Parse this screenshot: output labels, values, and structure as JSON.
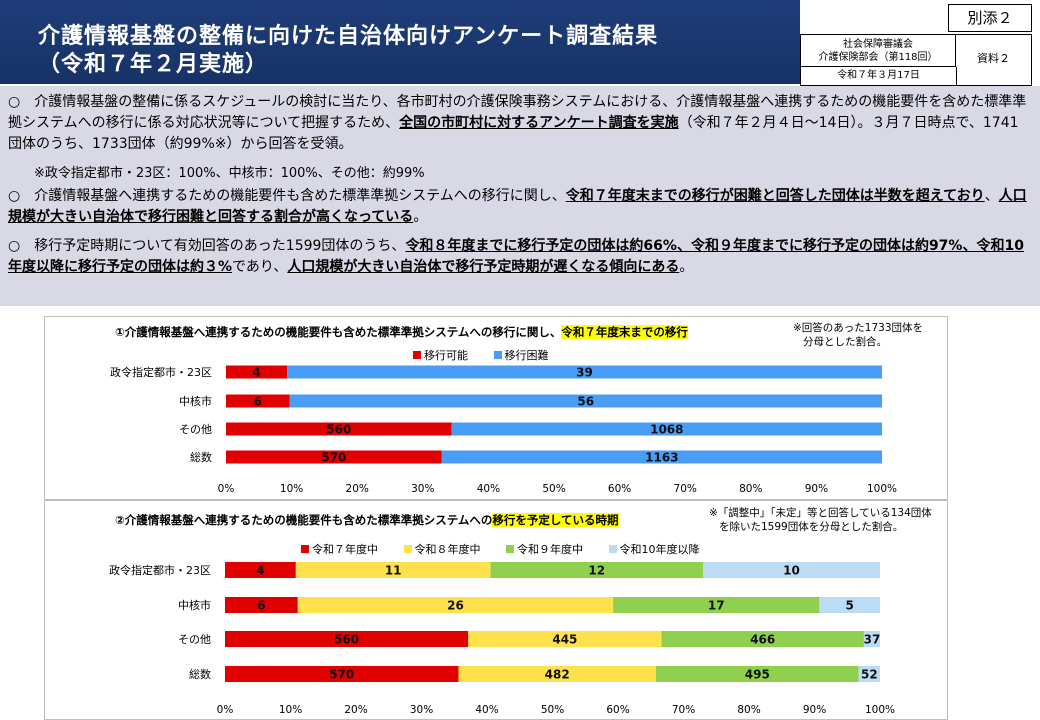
{
  "header": {
    "title_line1": "介護情報基盤の整備に向けた自治体向けアンケート調査結果",
    "title_line2": "（令和７年２月実施）",
    "attachment": "別添２",
    "council_line1": "社会保障審議会",
    "council_line2": "介護保険部会（第118回）",
    "doc_label": "資料２",
    "date": "令和７年３月17日"
  },
  "summary": {
    "p1_a": "○　介護情報基盤の整備に係るスケジュールの検討に当たり、各市町村の介護保険事務システムにおける、介護情報基盤へ連携するための機能要件を含めた標準準拠システムへの移行に係る対応状況等について把握するため、",
    "p1_b": "全国の市町村に対するアンケート調査を実施",
    "p1_c": "（令和７年２月４日～14日）。３月７日時点で、1741団体のうち、1733団体（約99%※）から回答を受領。",
    "p1_note": "※政令指定都市・23区：100%、中核市：100%、その他：約99%",
    "p2_a": "○　介護情報基盤へ連携するための機能要件も含めた標準準拠システムへの移行に関し、",
    "p2_b": "令和７年度末までの移行が困難と回答した団体は半数を超えており",
    "p2_c": "、",
    "p2_d": "人口規模が大きい自治体で移行困難と回答する割合が高くなっている",
    "p2_e": "。",
    "p3_a": "○　移行予定時期について有効回答のあった1599団体のうち、",
    "p3_b": "令和８年度までに移行予定の団体は約66%、令和９年度までに移行予定の団体は約97%、令和10年度以降に移行予定の団体は約３%",
    "p3_c": "であり、",
    "p3_d": "人口規模が大きい自治体で移行予定時期が遅くなる傾向にある",
    "p3_e": "。"
  },
  "chart_data": [
    {
      "type": "bar",
      "orientation": "horizontal",
      "stacked": "percent",
      "title_prefix": "①介護情報基盤へ連携するための機能要件も含めた標準準拠システムへの移行に関し、",
      "title_highlight": "令和７年度末までの移行",
      "note_line1": "※回答のあった1733団体を",
      "note_line2": "分母とした割合。",
      "categories": [
        "政令指定都市・23区",
        "中核市",
        "その他",
        "総数"
      ],
      "series": [
        {
          "name": "移行可能",
          "color": "#e00000",
          "values": [
            4,
            6,
            560,
            570
          ]
        },
        {
          "name": "移行困難",
          "color": "#4a9df5",
          "values": [
            39,
            56,
            1068,
            1163
          ]
        }
      ],
      "xticks": [
        "0%",
        "10%",
        "20%",
        "30%",
        "40%",
        "50%",
        "60%",
        "70%",
        "80%",
        "90%",
        "100%"
      ],
      "xlim": [
        0,
        100
      ]
    },
    {
      "type": "bar",
      "orientation": "horizontal",
      "stacked": "percent",
      "title_prefix": "②介護情報基盤へ連携するための機能要件も含めた標準準拠システムへの",
      "title_highlight": "移行を予定している時期",
      "note_line1": "※「調整中」「未定」等と回答している134団体",
      "note_line2": "を除いた1599団体を分母とした割合。",
      "categories": [
        "政令指定都市・23区",
        "中核市",
        "その他",
        "総数"
      ],
      "series": [
        {
          "name": "令和７年度中",
          "color": "#e00000",
          "values": [
            4,
            6,
            560,
            570
          ]
        },
        {
          "name": "令和８年度中",
          "color": "#ffe14d",
          "values": [
            11,
            26,
            445,
            482
          ]
        },
        {
          "name": "令和９年度中",
          "color": "#8fd14f",
          "values": [
            12,
            17,
            466,
            495
          ]
        },
        {
          "name": "令和10年度以降",
          "color": "#bcdcf5",
          "values": [
            10,
            5,
            37,
            52
          ]
        }
      ],
      "xticks": [
        "0%",
        "10%",
        "20%",
        "30%",
        "40%",
        "50%",
        "60%",
        "70%",
        "80%",
        "90%",
        "100%"
      ],
      "xlim": [
        0,
        100
      ]
    }
  ]
}
